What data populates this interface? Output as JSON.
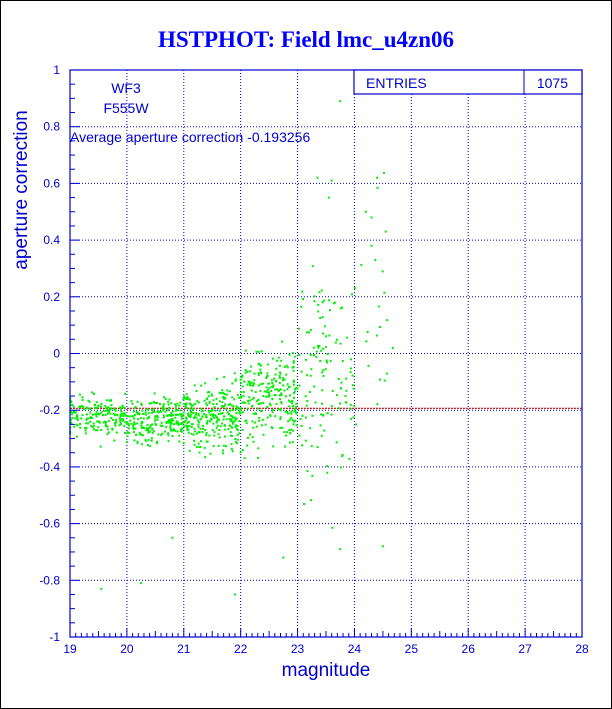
{
  "chart_data": {
    "type": "scatter",
    "title": "HSTPHOT: Field lmc_u4zn06",
    "xlabel": "magnitude",
    "ylabel": "aperture correction",
    "xlim": [
      19,
      28
    ],
    "ylim": [
      -1,
      1
    ],
    "xticks": [
      "19",
      "20",
      "21",
      "22",
      "23",
      "24",
      "25",
      "26",
      "27",
      "28"
    ],
    "yticks": [
      "-1",
      "-0.8",
      "-0.6",
      "-0.4",
      "-0.2",
      "0",
      "0.2",
      "0.4",
      "0.6",
      "0.8",
      "1"
    ],
    "grid": true,
    "stats_box": {
      "label": "ENTRIES",
      "value": "1075"
    },
    "annotations": {
      "chip": "WF3",
      "filter": "F555W",
      "average_text": "Average aperture correction -0.193256"
    },
    "average_line": {
      "y": -0.193256,
      "color": "#cc0000"
    },
    "point_color": "#00ee00",
    "point_count": 1075,
    "distribution_bins": [
      {
        "x": [
          19.0,
          20.0
        ],
        "count": 180,
        "y_mean": -0.22,
        "y_spread": 0.05
      },
      {
        "x": [
          20.0,
          21.0
        ],
        "count": 230,
        "y_mean": -0.24,
        "y_spread": 0.06
      },
      {
        "x": [
          21.0,
          22.0
        ],
        "count": 270,
        "y_mean": -0.22,
        "y_spread": 0.08
      },
      {
        "x": [
          22.0,
          23.0
        ],
        "count": 250,
        "y_mean": -0.15,
        "y_spread": 0.12
      },
      {
        "x": [
          23.0,
          24.0
        ],
        "count": 125,
        "y_mean": -0.05,
        "y_spread": 0.25
      },
      {
        "x": [
          24.0,
          24.7
        ],
        "count": 20,
        "y_mean": 0.05,
        "y_spread": 0.35
      }
    ],
    "outliers": [
      {
        "x": 23.75,
        "y": 0.89
      },
      {
        "x": 23.35,
        "y": 0.62
      },
      {
        "x": 23.6,
        "y": 0.61
      },
      {
        "x": 24.4,
        "y": 0.62
      },
      {
        "x": 23.55,
        "y": 0.55
      },
      {
        "x": 24.2,
        "y": 0.5
      },
      {
        "x": 24.3,
        "y": 0.48
      },
      {
        "x": 24.55,
        "y": 0.43
      },
      {
        "x": 24.3,
        "y": 0.38
      },
      {
        "x": 19.55,
        "y": -0.83
      },
      {
        "x": 20.25,
        "y": -0.81
      },
      {
        "x": 21.9,
        "y": -0.85
      },
      {
        "x": 23.75,
        "y": -0.69
      },
      {
        "x": 24.5,
        "y": -0.68
      },
      {
        "x": 22.75,
        "y": -0.72
      },
      {
        "x": 20.8,
        "y": -0.65
      }
    ]
  }
}
